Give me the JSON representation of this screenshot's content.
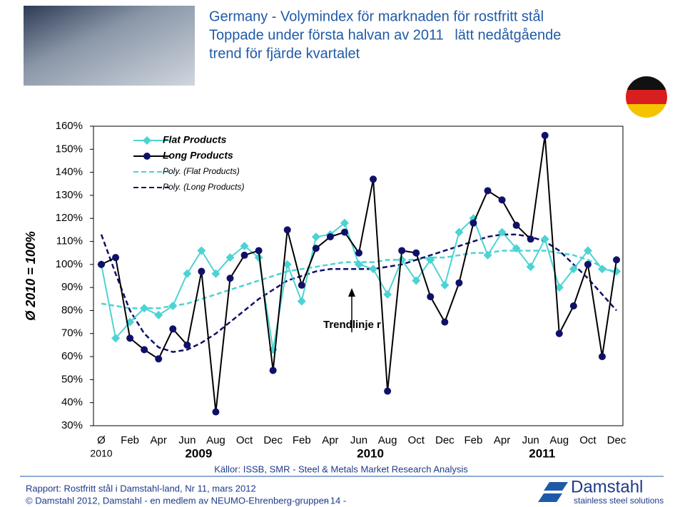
{
  "chart_data": {
    "type": "line",
    "title_lines": [
      "Germany - Volymindex för marknaden för rostfritt stål",
      "Toppade under första halvan av 2011  lätt nedåtgående",
      "trend för fjärde kvartalet"
    ],
    "ylabel": "Ø 2010 = 100%",
    "categories": [
      "Ø",
      null,
      "Feb",
      null,
      "Apr",
      null,
      "Jun",
      null,
      "Aug",
      null,
      "Oct",
      null,
      "Dec",
      null,
      "Feb",
      null,
      "Apr",
      null,
      "Jun",
      null,
      "Aug",
      null,
      "Oct",
      null,
      "Dec",
      null,
      "Feb",
      null,
      "Apr",
      null,
      "Jun",
      null,
      "Aug",
      null,
      "Oct",
      null,
      "Dec"
    ],
    "group_labels": [
      "2010",
      "2009",
      "2010",
      "2011"
    ],
    "series": [
      {
        "name": "Flat Products",
        "color": "#4cd3d3",
        "style": "solid",
        "marker": "diamond",
        "values": [
          100,
          68,
          75,
          81,
          78,
          82,
          96,
          106,
          96,
          103,
          108,
          103,
          63,
          100,
          84,
          112,
          113,
          118,
          100,
          98,
          87,
          102,
          93,
          102,
          91,
          114,
          120,
          104,
          114,
          107,
          99,
          111,
          90,
          98,
          106,
          98,
          97
        ]
      },
      {
        "name": "Long Products",
        "color": "#10106a",
        "style": "solid",
        "marker": "circle",
        "values": [
          100,
          103,
          68,
          63,
          59,
          72,
          65,
          97,
          36,
          94,
          104,
          106,
          54,
          115,
          91,
          107,
          112,
          114,
          105,
          137,
          45,
          106,
          105,
          86,
          75,
          92,
          118,
          132,
          128,
          117,
          111,
          156,
          70,
          82,
          100,
          60,
          102
        ]
      },
      {
        "name": "Poly. (Flat Products)",
        "color": "#4cd3d3",
        "style": "dashed",
        "values": [
          83,
          82,
          81,
          81,
          81,
          82,
          83,
          85,
          87,
          89,
          91,
          93,
          95,
          97,
          98,
          99,
          100,
          101,
          101,
          101,
          102,
          102,
          102,
          103,
          103,
          104,
          105,
          105,
          106,
          106,
          106,
          106,
          105,
          104,
          102,
          99,
          96
        ]
      },
      {
        "name": "Poly. (Long Products)",
        "color": "#10106a",
        "style": "dashed",
        "values": [
          113,
          96,
          80,
          70,
          64,
          62,
          63,
          66,
          70,
          75,
          80,
          85,
          89,
          93,
          95,
          97,
          98,
          98,
          98,
          98,
          99,
          100,
          102,
          104,
          106,
          108,
          110,
          112,
          113,
          113,
          112,
          110,
          106,
          100,
          94,
          87,
          80
        ]
      }
    ],
    "ylim": [
      30,
      160
    ],
    "yticks": [
      {
        "value": 30,
        "label": "30%"
      },
      {
        "value": 40,
        "label": "40%"
      },
      {
        "value": 50,
        "label": "50%"
      },
      {
        "value": 60,
        "label": "60%"
      },
      {
        "value": 70,
        "label": "70%"
      },
      {
        "value": 80,
        "label": "80%"
      },
      {
        "value": 90,
        "label": "90%"
      },
      {
        "value": 100,
        "label": "100%"
      },
      {
        "value": 110,
        "label": "110%"
      },
      {
        "value": 120,
        "label": "120%"
      },
      {
        "value": 130,
        "label": "130%"
      },
      {
        "value": 140,
        "label": "140%"
      },
      {
        "value": 150,
        "label": "150%"
      },
      {
        "value": 160,
        "label": "160%"
      }
    ],
    "annotation": "Trendlinje r",
    "source": "Källor: ISSB, SMR - Steel & Metals Market Research Analysis"
  },
  "footer": {
    "report": "Rapport: Rostfritt stål i Damstahl-land, Nr 11, mars 2012",
    "copyright": "© Damstahl 2012, Damstahl - en medlem av NEUMO-Ehrenberg-gruppen",
    "page": "- 14 -",
    "logo": "Damstahl",
    "tagline": "stainless steel solutions"
  }
}
